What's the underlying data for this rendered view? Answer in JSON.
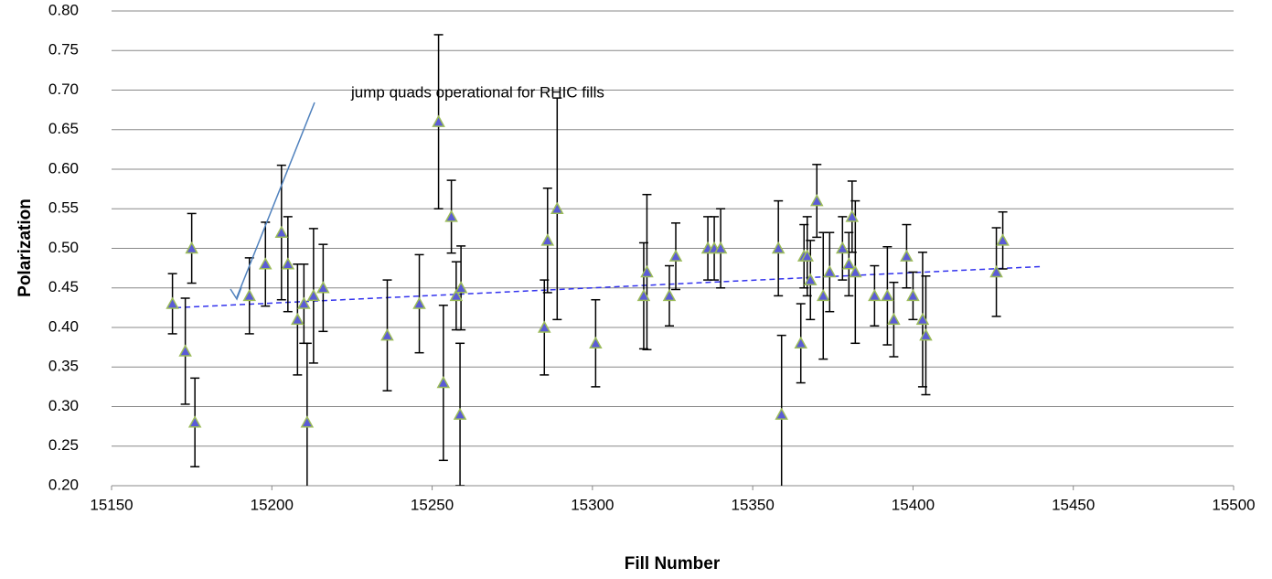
{
  "chart_data": {
    "type": "scatter",
    "x_label": "Fill Number",
    "y_label": "Polarization",
    "annotation": "jump quads operational for RHIC fills",
    "xlim": [
      15150,
      15500
    ],
    "xticks": [
      15150,
      15200,
      15250,
      15300,
      15350,
      15400,
      15450,
      15500
    ],
    "ylim": [
      0.2,
      0.8
    ],
    "yticks": [
      {
        "value": 0.2,
        "label": "0.20"
      },
      {
        "value": 0.25,
        "label": "0.25"
      },
      {
        "value": 0.3,
        "label": "0.30"
      },
      {
        "value": 0.35,
        "label": "0.35"
      },
      {
        "value": 0.4,
        "label": "0.40"
      },
      {
        "value": 0.45,
        "label": "0.45"
      },
      {
        "value": 0.5,
        "label": "0.50"
      },
      {
        "value": 0.55,
        "label": "0.55"
      },
      {
        "value": 0.6,
        "label": "0.60"
      },
      {
        "value": 0.65,
        "label": "0.65"
      },
      {
        "value": 0.7,
        "label": "0.70"
      },
      {
        "value": 0.75,
        "label": "0.75"
      },
      {
        "value": 0.8,
        "label": "0.80"
      }
    ],
    "grid": true,
    "marker_color": "#5b5bd6",
    "marker_edge_color": "#9bbb59",
    "x": [
      15169,
      15173,
      15175,
      15176,
      15193,
      15198,
      15203,
      15205,
      15208,
      15210,
      15211,
      15213,
      15216,
      15236,
      15246,
      15252,
      15253.5,
      15256,
      15257.5,
      15258.7,
      15259,
      15285,
      15286,
      15289,
      15301,
      15316,
      15317,
      15324,
      15326,
      15336,
      15338,
      15340,
      15358,
      15359,
      15365,
      15366,
      15367,
      15368,
      15370,
      15372,
      15374,
      15378,
      15380,
      15381,
      15382,
      15388,
      15392,
      15394,
      15398,
      15400,
      15403,
      15404,
      15426,
      15428
    ],
    "values": [
      0.43,
      0.37,
      0.5,
      0.28,
      0.44,
      0.48,
      0.52,
      0.48,
      0.41,
      0.43,
      0.28,
      0.44,
      0.45,
      0.39,
      0.43,
      0.66,
      0.33,
      0.54,
      0.44,
      0.29,
      0.45,
      0.4,
      0.51,
      0.55,
      0.38,
      0.44,
      0.47,
      0.44,
      0.49,
      0.5,
      0.5,
      0.5,
      0.5,
      0.29,
      0.38,
      0.49,
      0.49,
      0.46,
      0.56,
      0.44,
      0.47,
      0.5,
      0.48,
      0.54,
      0.47,
      0.44,
      0.44,
      0.41,
      0.49,
      0.44,
      0.41,
      0.39,
      0.47,
      0.51
    ],
    "errors": [
      0.038,
      0.067,
      0.044,
      0.056,
      0.048,
      0.053,
      0.085,
      0.06,
      0.07,
      0.05,
      0.1,
      0.085,
      0.055,
      0.07,
      0.062,
      0.11,
      0.098,
      0.046,
      0.043,
      0.09,
      0.053,
      0.06,
      0.066,
      0.14,
      0.055,
      0.067,
      0.098,
      0.038,
      0.042,
      0.04,
      0.04,
      0.05,
      0.06,
      0.1,
      0.05,
      0.04,
      0.05,
      0.05,
      0.046,
      0.08,
      0.05,
      0.04,
      0.04,
      0.045,
      0.09,
      0.038,
      0.062,
      0.047,
      0.04,
      0.03,
      0.085,
      0.075,
      0.056,
      0.036
    ],
    "trendline": {
      "x": [
        15170,
        15440
      ],
      "values": [
        0.425,
        0.477
      ],
      "color": "#3333ee"
    },
    "annotation_color": "#4f81bd"
  }
}
